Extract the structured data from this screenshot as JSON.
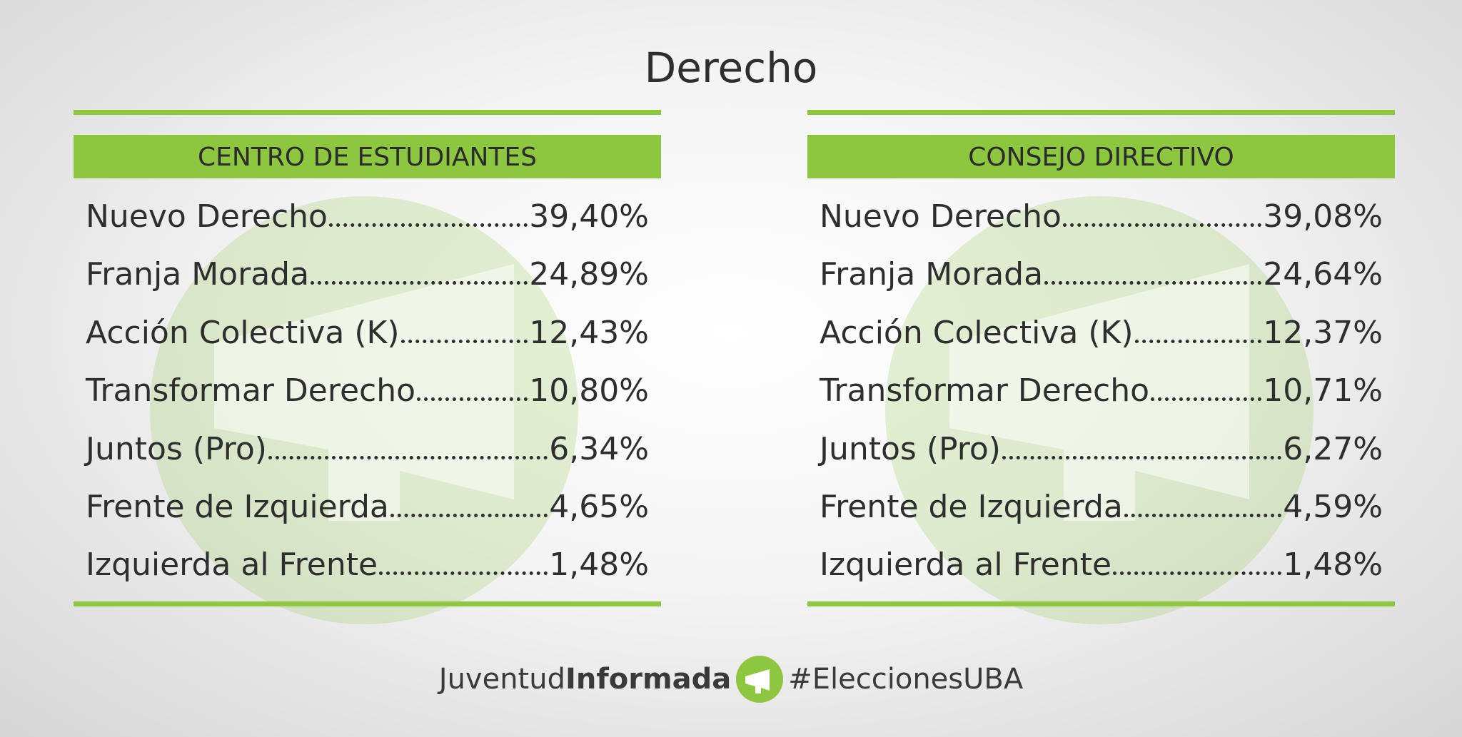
{
  "header": {
    "title": "Derecho"
  },
  "panels": [
    {
      "heading": "CENTRO DE ESTUDIANTES",
      "rows": [
        [
          "Nuevo Derecho",
          "39,40%"
        ],
        [
          "Franja Morada",
          "24,89%"
        ],
        [
          "Acción Colectiva (K)",
          "12,43%"
        ],
        [
          "Transformar Derecho",
          "10,80%"
        ],
        [
          "Juntos (Pro)",
          "6,34%"
        ],
        [
          "Frente de Izquierda",
          "4,65%"
        ],
        [
          "Izquierda al Frente",
          "1,48%"
        ]
      ]
    },
    {
      "heading": "CONSEJO DIRECTIVO",
      "rows": [
        [
          "Nuevo Derecho",
          "39,08%"
        ],
        [
          "Franja Morada",
          "24,64%"
        ],
        [
          "Acción Colectiva (K)",
          "12,37%"
        ],
        [
          "Transformar Derecho",
          "10,71%"
        ],
        [
          "Juntos (Pro)",
          "6,27%"
        ],
        [
          "Frente de Izquierda",
          "4,59%"
        ],
        [
          "Izquierda al Frente",
          "1,48%"
        ]
      ]
    }
  ],
  "footer": {
    "brand_light": "Juventud",
    "brand_bold": "Informada",
    "hashtag": "#EleccionesUBA"
  }
}
